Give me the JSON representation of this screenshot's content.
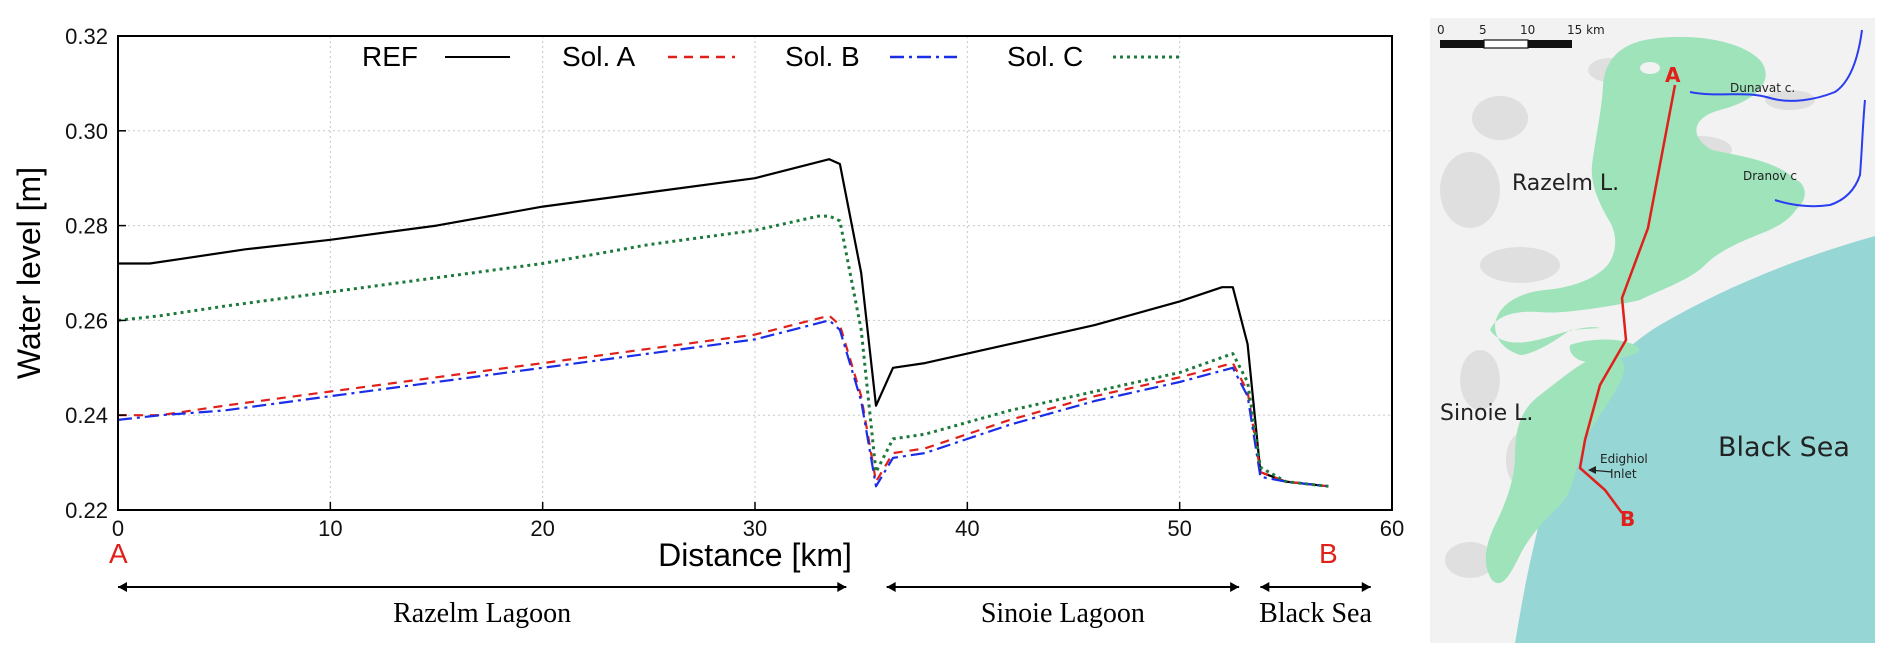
{
  "chart_data": {
    "type": "line",
    "xlabel": "Distance [km]",
    "ylabel": "Water level [m]",
    "xlim": [
      0,
      60
    ],
    "ylim": [
      0.22,
      0.32
    ],
    "xticks": [
      0,
      10,
      20,
      30,
      40,
      50,
      60
    ],
    "yticks": [
      0.22,
      0.24,
      0.26,
      0.28,
      0.3,
      0.32
    ],
    "xtick_labels": [
      "0",
      "10",
      "20",
      "30",
      "40",
      "50",
      "60"
    ],
    "ytick_labels": [
      "0.22",
      "0.24",
      "0.26",
      "0.28",
      "0.30",
      "0.32"
    ],
    "grid": true,
    "legend_position": "top",
    "series": [
      {
        "name": "REF",
        "color": "#000000",
        "dash": "solid",
        "x": [
          0,
          1.5,
          3,
          6,
          10,
          15,
          20,
          25,
          30,
          33.5,
          34,
          35,
          35.7,
          36.5,
          38,
          42,
          46,
          50,
          52,
          52.5,
          53.2,
          53.8,
          55,
          57
        ],
        "y": [
          0.272,
          0.272,
          0.273,
          0.275,
          0.277,
          0.28,
          0.284,
          0.287,
          0.29,
          0.294,
          0.293,
          0.27,
          0.242,
          0.25,
          0.251,
          0.255,
          0.259,
          0.264,
          0.267,
          0.267,
          0.255,
          0.228,
          0.226,
          0.225
        ]
      },
      {
        "name": "Sol. A",
        "color": "#e0201b",
        "dash": "dashed",
        "x": [
          0,
          2,
          5,
          10,
          15,
          20,
          25,
          30,
          33.5,
          34,
          35,
          35.7,
          36.5,
          38,
          42,
          46,
          50,
          52.5,
          53.2,
          53.8,
          55,
          57
        ],
        "y": [
          0.24,
          0.24,
          0.242,
          0.245,
          0.248,
          0.251,
          0.254,
          0.257,
          0.261,
          0.259,
          0.244,
          0.226,
          0.232,
          0.233,
          0.239,
          0.244,
          0.248,
          0.251,
          0.245,
          0.228,
          0.226,
          0.225
        ]
      },
      {
        "name": "Sol. B",
        "color": "#1a2ee8",
        "dash": "dashdot",
        "x": [
          0,
          2,
          5,
          10,
          15,
          20,
          25,
          30,
          33.5,
          34,
          35,
          35.7,
          36.5,
          38,
          42,
          46,
          50,
          52.5,
          53.2,
          53.8,
          55,
          57
        ],
        "y": [
          0.239,
          0.24,
          0.241,
          0.244,
          0.247,
          0.25,
          0.253,
          0.256,
          0.26,
          0.258,
          0.243,
          0.225,
          0.231,
          0.232,
          0.238,
          0.243,
          0.247,
          0.25,
          0.244,
          0.227,
          0.226,
          0.225
        ]
      },
      {
        "name": "Sol. C",
        "color": "#1e7a3c",
        "dash": "dotted",
        "x": [
          0,
          2,
          5,
          10,
          15,
          20,
          25,
          30,
          33,
          33.5,
          34,
          35,
          35.7,
          36.5,
          38,
          42,
          46,
          50,
          52.5,
          53.2,
          53.8,
          55,
          57
        ],
        "y": [
          0.26,
          0.261,
          0.263,
          0.266,
          0.269,
          0.272,
          0.276,
          0.279,
          0.282,
          0.282,
          0.281,
          0.258,
          0.228,
          0.235,
          0.236,
          0.241,
          0.245,
          0.249,
          0.253,
          0.247,
          0.229,
          0.226,
          0.225
        ]
      }
    ]
  },
  "figure": {
    "start_label": "A",
    "end_label": "B",
    "regions": [
      {
        "label": "Razelm Lagoon",
        "from_km": 0,
        "to_km": 34.3
      },
      {
        "label": "Sinoie Lagoon",
        "from_km": 36.2,
        "to_km": 52.8
      },
      {
        "label": "Black Sea",
        "from_km": 53.8,
        "to_km": 59
      }
    ]
  },
  "map": {
    "scale_ticks": [
      "0",
      "5",
      "10",
      "15 km"
    ],
    "labels": {
      "razelm": "Razelm L.",
      "sinoie": "Sinoie L.",
      "black_sea": "Black Sea",
      "dunavat": "Dunavat c.",
      "dranov": "Dranov c",
      "inlet_line1": "Edighiol",
      "inlet_line2": "Inlet",
      "point_a": "A",
      "point_b": "B"
    },
    "colors": {
      "lagoon": "#9fe3bb",
      "sea": "#96d6d5",
      "land": "#f2f2f2",
      "river": "#2a3df0",
      "transect": "#e0201b"
    }
  }
}
